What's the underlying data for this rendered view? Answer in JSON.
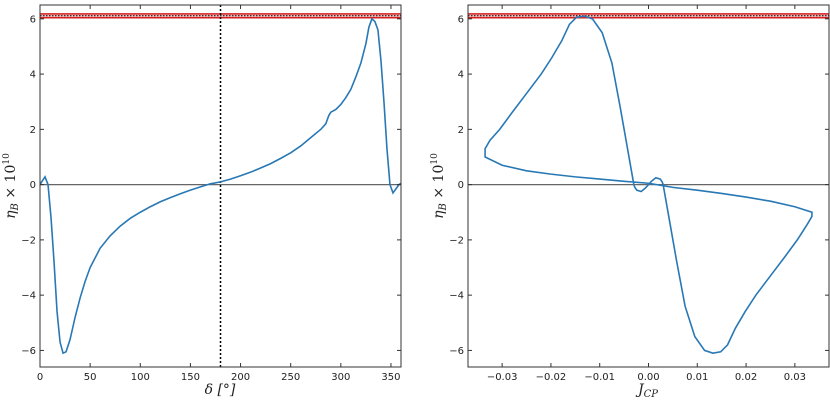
{
  "chart_data": [
    {
      "type": "line",
      "xlabel": "δ [°]",
      "ylabel": "η_B × 10^10",
      "ylabel_base": "η",
      "ylabel_sub": "B",
      "ylabel_times": " × 10",
      "ylabel_sup": "10",
      "xlim": [
        0,
        360
      ],
      "ylim": [
        -6.6,
        6.5
      ],
      "xticks": [
        0,
        50,
        100,
        150,
        200,
        250,
        300,
        350
      ],
      "yticks": [
        -6,
        -4,
        -2,
        0,
        2,
        4,
        6
      ],
      "hline": 0,
      "observed_band": [
        6.04,
        6.18
      ],
      "vline": 180,
      "series": [
        {
          "color": "#2878b5",
          "x": [
            0,
            2,
            5,
            8,
            11,
            14,
            17,
            20,
            23,
            26,
            30,
            35,
            40,
            45,
            50,
            60,
            70,
            80,
            90,
            100,
            110,
            120,
            130,
            140,
            150,
            160,
            170,
            180,
            190,
            200,
            210,
            220,
            230,
            240,
            250,
            260,
            270,
            280,
            285,
            288,
            290,
            295,
            300,
            305,
            310,
            315,
            320,
            325,
            328,
            331,
            334,
            337,
            340,
            343,
            346,
            349,
            352,
            355,
            358,
            360
          ],
          "y": [
            0.0,
            0.12,
            0.28,
            0.0,
            -1.2,
            -2.8,
            -4.6,
            -5.7,
            -6.1,
            -6.05,
            -5.6,
            -4.8,
            -4.1,
            -3.5,
            -3.0,
            -2.3,
            -1.85,
            -1.5,
            -1.22,
            -1.0,
            -0.8,
            -0.62,
            -0.47,
            -0.33,
            -0.2,
            -0.08,
            0.03,
            0.1,
            0.2,
            0.32,
            0.45,
            0.6,
            0.76,
            0.95,
            1.15,
            1.4,
            1.7,
            2.0,
            2.2,
            2.5,
            2.62,
            2.72,
            2.9,
            3.15,
            3.45,
            3.9,
            4.4,
            5.1,
            5.7,
            6.0,
            5.9,
            5.6,
            4.5,
            3.0,
            1.3,
            0.0,
            -0.3,
            -0.15,
            0.0,
            0.05
          ]
        }
      ]
    },
    {
      "type": "line",
      "xlabel": "J_CP",
      "xlabel_base": "J",
      "xlabel_sub": "CP",
      "ylabel": "η_B × 10^10",
      "ylabel_base": "η",
      "ylabel_sub": "B",
      "ylabel_times": " × 10",
      "ylabel_sup": "10",
      "xlim": [
        -0.037,
        0.037
      ],
      "ylim": [
        -6.6,
        6.5
      ],
      "xticks": [
        -0.03,
        -0.02,
        -0.01,
        0.0,
        0.01,
        0.02,
        0.03
      ],
      "xtick_labels": [
        "−0.03",
        "−0.02",
        "−0.01",
        "0.00",
        "0.01",
        "0.02",
        "0.03"
      ],
      "yticks": [
        -6,
        -4,
        -2,
        0,
        2,
        4,
        6
      ],
      "hline": 0,
      "observed_band": [
        6.04,
        6.18
      ],
      "series": [
        {
          "color": "#2878b5",
          "x": [
            0.0,
            0.0006,
            0.0015,
            0.0024,
            0.0028,
            0.003,
            0.0035,
            0.0045,
            0.0058,
            0.0075,
            0.0095,
            0.0115,
            0.0132,
            0.0148,
            0.0162,
            0.0178,
            0.0198,
            0.022,
            0.025,
            0.028,
            0.0305,
            0.0325,
            0.0335,
            0.0335,
            0.03,
            0.025,
            0.02,
            0.015,
            0.01,
            0.005,
            0.0,
            -0.005,
            -0.01,
            -0.015,
            -0.02,
            -0.025,
            -0.03,
            -0.0335,
            -0.0335,
            -0.0325,
            -0.0305,
            -0.028,
            -0.025,
            -0.022,
            -0.0198,
            -0.0178,
            -0.0162,
            -0.0148,
            -0.0132,
            -0.0115,
            -0.0095,
            -0.0075,
            -0.0058,
            -0.0045,
            -0.0035,
            -0.003,
            -0.0028,
            -0.0024,
            -0.0015,
            -0.0006,
            0.0
          ],
          "y": [
            0.0,
            0.12,
            0.25,
            0.2,
            0.1,
            0.0,
            -0.5,
            -1.5,
            -2.8,
            -4.4,
            -5.5,
            -6.0,
            -6.1,
            -6.05,
            -5.8,
            -5.2,
            -4.6,
            -4.0,
            -3.3,
            -2.6,
            -2.0,
            -1.45,
            -1.15,
            -1.0,
            -0.8,
            -0.6,
            -0.45,
            -0.32,
            -0.2,
            -0.1,
            0.05,
            0.12,
            0.2,
            0.28,
            0.38,
            0.5,
            0.7,
            1.0,
            1.3,
            1.6,
            2.0,
            2.6,
            3.3,
            4.0,
            4.6,
            5.2,
            5.8,
            6.05,
            6.1,
            6.0,
            5.5,
            4.4,
            2.8,
            1.5,
            0.5,
            0.0,
            -0.1,
            -0.2,
            -0.25,
            -0.12,
            0.0
          ]
        }
      ]
    }
  ]
}
